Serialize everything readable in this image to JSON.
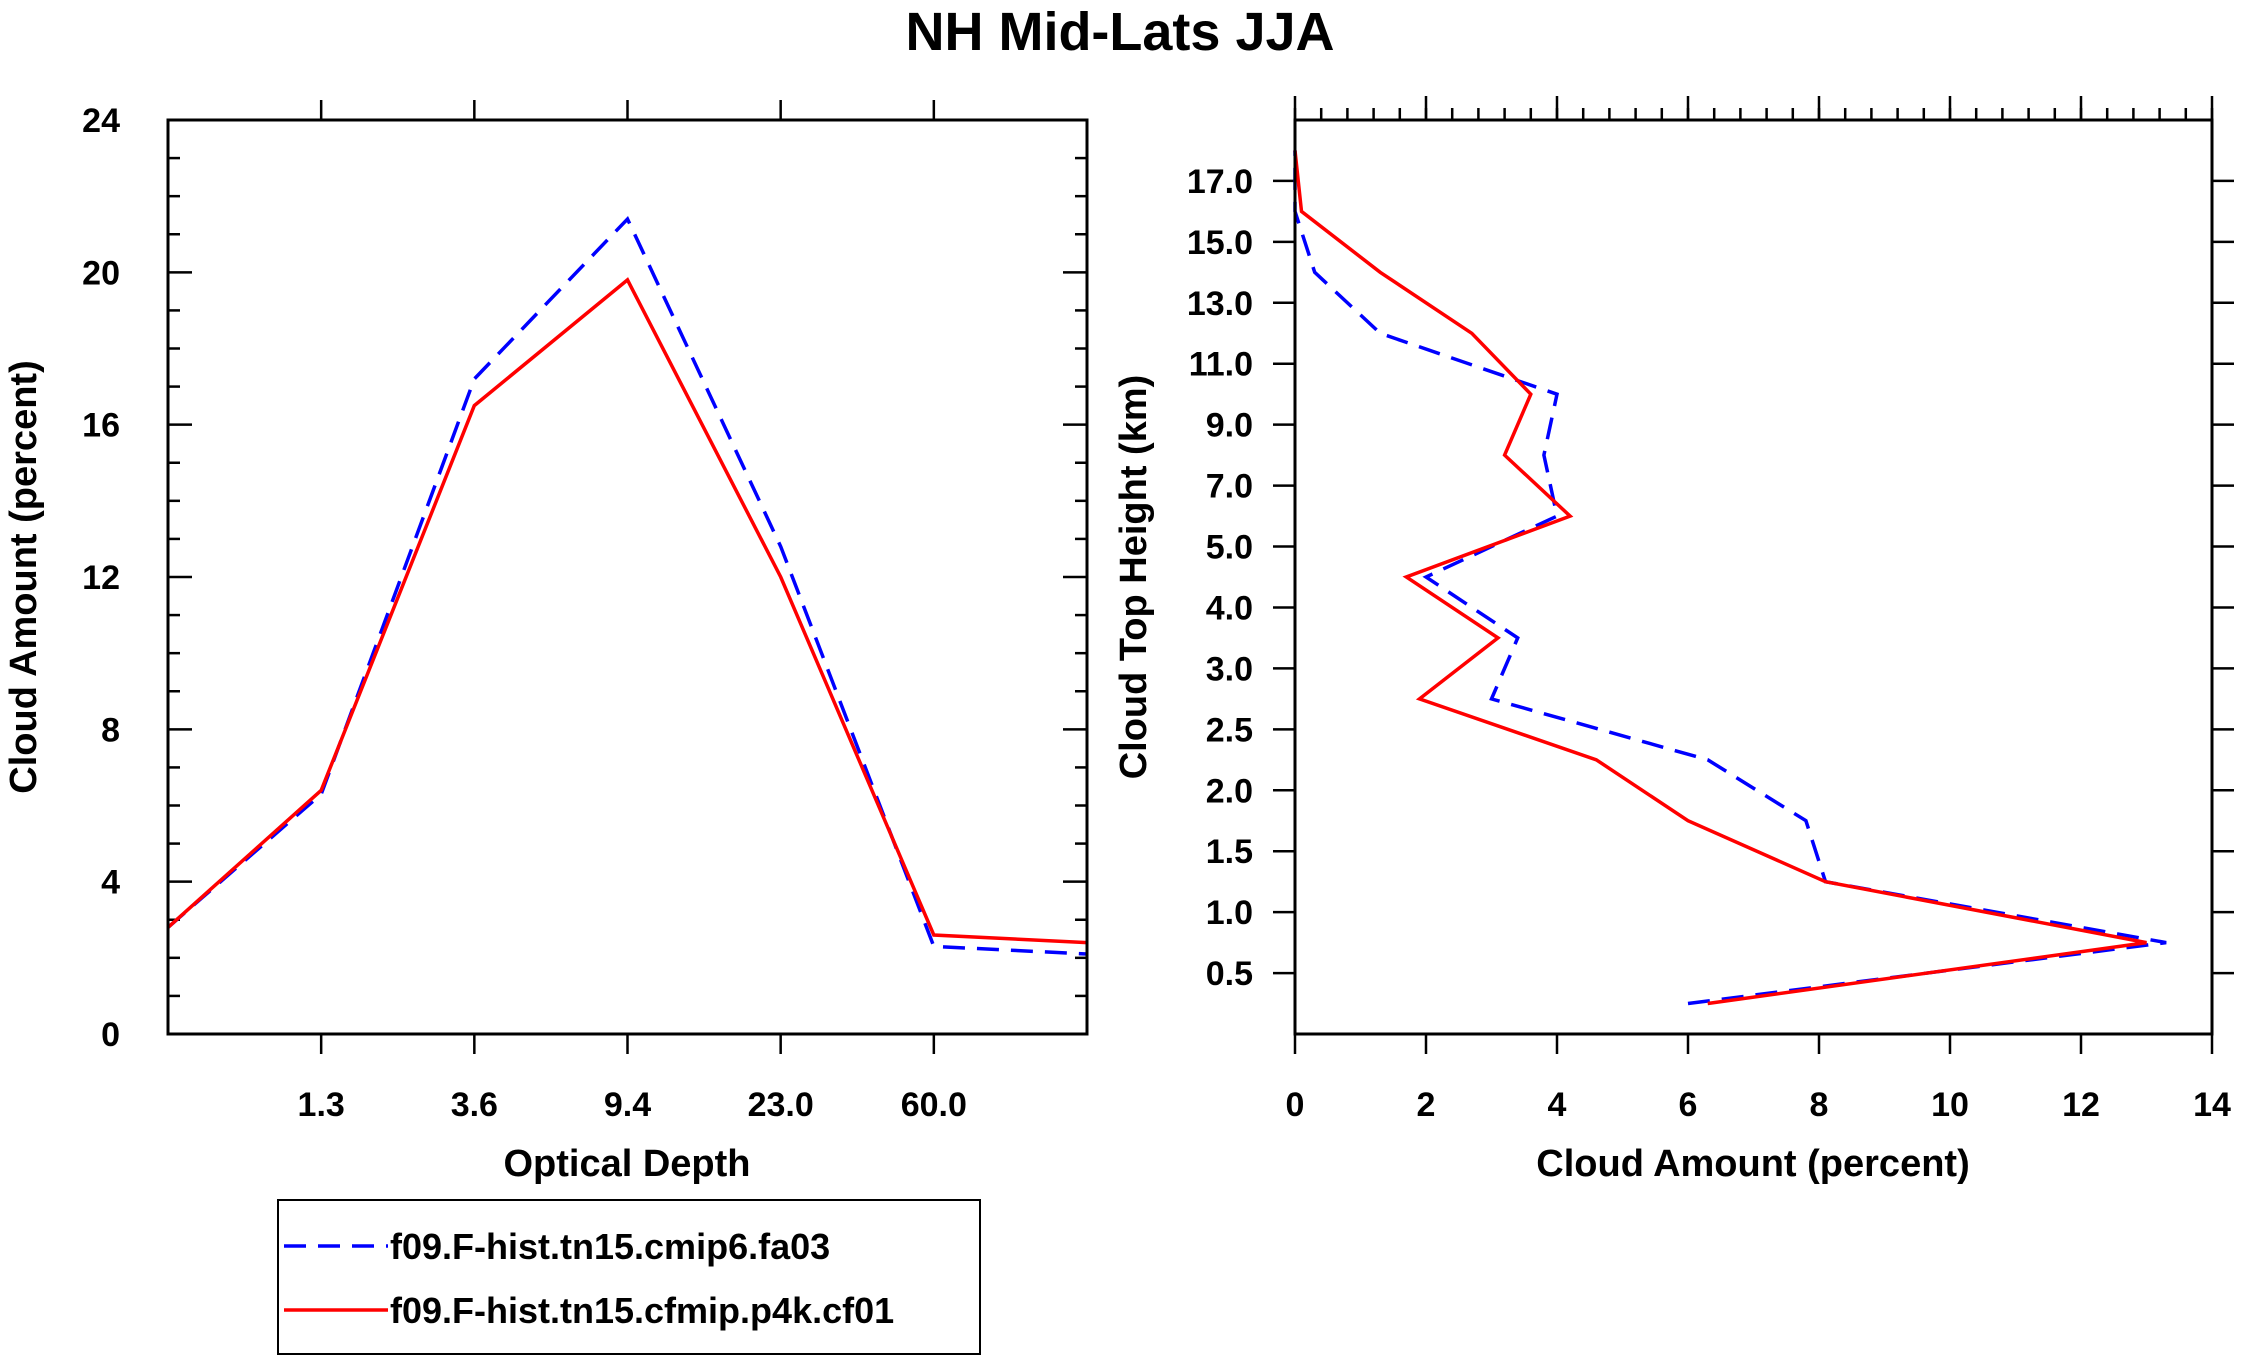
{
  "title": "NH Mid-Lats JJA",
  "colors": {
    "series_1": "#0000ff",
    "series_2": "#ff0000",
    "axes": "#000000"
  },
  "legend": {
    "items": [
      {
        "label": "f09.F-hist.tn15.cmip6.fa03",
        "color": "#0000ff",
        "dash": "dashed"
      },
      {
        "label": "f09.F-hist.tn15.cfmip.p4k.cf01",
        "color": "#ff0000",
        "dash": "solid"
      }
    ]
  },
  "chart_data": [
    {
      "type": "line",
      "title": "",
      "xlabel": "Optical Depth",
      "ylabel": "Cloud Amount (percent)",
      "x_bins": 7,
      "x_tick_positions": [
        1,
        2,
        3,
        4,
        5
      ],
      "x_tick_labels": [
        "1.3",
        "3.6",
        "9.4",
        "23.0",
        "60.0"
      ],
      "ylim": [
        0,
        24
      ],
      "y_ticks": [
        0,
        4,
        8,
        12,
        16,
        20,
        24
      ],
      "y_minor_step": 1,
      "x": [
        0,
        1,
        2,
        3,
        4,
        5,
        6
      ],
      "series": [
        {
          "name": "f09.F-hist.tn15.cmip6.fa03",
          "values": [
            2.8,
            6.3,
            17.2,
            21.4,
            12.8,
            2.3,
            2.1
          ]
        },
        {
          "name": "f09.F-hist.tn15.cfmip.p4k.cf01",
          "values": [
            2.8,
            6.4,
            16.5,
            19.8,
            12.0,
            2.6,
            2.4
          ]
        }
      ]
    },
    {
      "type": "line",
      "title": "",
      "xlabel": "Cloud Amount (percent)",
      "ylabel": "Cloud Top Height (km)",
      "xlim": [
        0,
        14
      ],
      "x_ticks": [
        0,
        2,
        4,
        6,
        8,
        10,
        12,
        14
      ],
      "x_minor_step": 0.4,
      "y_levels": 15,
      "y_tick_positions": [
        1,
        2,
        3,
        4,
        5,
        6,
        7,
        8,
        9,
        10,
        11,
        12,
        13,
        14
      ],
      "y_tick_labels": [
        "0.5",
        "1.0",
        "1.5",
        "2.0",
        "2.5",
        "3.0",
        "4.0",
        "5.0",
        "7.0",
        "9.0",
        "11.0",
        "13.0",
        "15.0",
        "17.0"
      ],
      "y": [
        0.5,
        1.5,
        2.5,
        3.5,
        4.5,
        5.5,
        6.5,
        7.5,
        8.5,
        9.5,
        10.5,
        11.5,
        12.5,
        13.5,
        14.5
      ],
      "series": [
        {
          "name": "f09.F-hist.tn15.cmip6.fa03",
          "values": [
            6.0,
            13.3,
            8.1,
            7.8,
            6.3,
            3.0,
            3.4,
            2.0,
            4.0,
            3.8,
            4.0,
            1.3,
            0.3,
            0.0,
            0.0
          ]
        },
        {
          "name": "f09.F-hist.tn15.cfmip.p4k.cf01",
          "values": [
            6.3,
            13.0,
            8.1,
            6.0,
            4.6,
            1.9,
            3.1,
            1.7,
            4.2,
            3.2,
            3.6,
            2.7,
            1.3,
            0.1,
            0.0
          ]
        }
      ]
    }
  ]
}
